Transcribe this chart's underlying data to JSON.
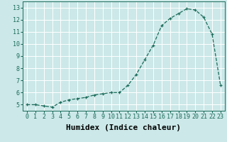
{
  "x": [
    0,
    1,
    2,
    3,
    4,
    5,
    6,
    7,
    8,
    9,
    10,
    11,
    12,
    13,
    14,
    15,
    16,
    17,
    18,
    19,
    20,
    21,
    22,
    23
  ],
  "y": [
    5.0,
    5.0,
    4.9,
    4.8,
    5.2,
    5.4,
    5.5,
    5.6,
    5.8,
    5.9,
    6.0,
    6.0,
    6.6,
    7.5,
    8.7,
    9.9,
    11.5,
    12.1,
    12.5,
    12.9,
    12.8,
    12.2,
    10.8,
    6.6
  ],
  "xlabel": "Humidex (Indice chaleur)",
  "ylabel": "",
  "xlim": [
    -0.5,
    23.5
  ],
  "ylim": [
    4.5,
    13.5
  ],
  "yticks": [
    5,
    6,
    7,
    8,
    9,
    10,
    11,
    12,
    13
  ],
  "xticks": [
    0,
    1,
    2,
    3,
    4,
    5,
    6,
    7,
    8,
    9,
    10,
    11,
    12,
    13,
    14,
    15,
    16,
    17,
    18,
    19,
    20,
    21,
    22,
    23
  ],
  "bg_color": "#cce8e8",
  "line_color": "#1a6b5a",
  "grid_color": "#ffffff",
  "tick_fontsize": 6,
  "xlabel_fontsize": 8
}
